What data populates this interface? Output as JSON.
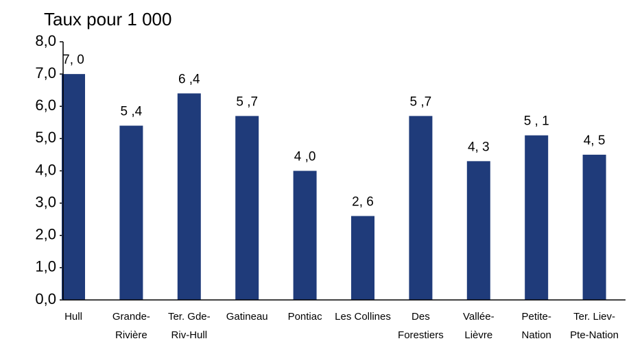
{
  "chart_data": {
    "type": "bar",
    "title": "Taux pour 1 000",
    "categories": [
      [
        "Hull"
      ],
      [
        "Grande-",
        "Rivière"
      ],
      [
        "Ter. Gde-",
        "Riv-Hull"
      ],
      [
        "Gatineau"
      ],
      [
        "Pontiac"
      ],
      [
        "Les Collines"
      ],
      [
        "Des",
        "Forestiers"
      ],
      [
        "Vallée-",
        "Lièvre"
      ],
      [
        "Petite-",
        "Nation"
      ],
      [
        "Ter. Liev-",
        "Pte-Nation"
      ]
    ],
    "values": [
      7.0,
      5.4,
      6.4,
      5.7,
      4.0,
      2.6,
      5.7,
      4.3,
      5.1,
      4.5
    ],
    "value_labels": [
      "7, 0",
      "5 ,4",
      "6 ,4",
      "5 ,7",
      "4 ,0",
      "2, 6",
      "5 ,7",
      "4, 3",
      "5 , 1",
      "4, 5"
    ],
    "color": "#1f3b7a",
    "ylim": [
      0,
      8
    ],
    "yticks": [
      {
        "value": 0,
        "label": "0,0"
      },
      {
        "value": 1,
        "label": "1,0"
      },
      {
        "value": 2,
        "label": "2,0"
      },
      {
        "value": 3,
        "label": "3,0"
      },
      {
        "value": 4,
        "label": "4,0"
      },
      {
        "value": 5,
        "label": "5,0"
      },
      {
        "value": 6,
        "label": "6,0"
      },
      {
        "value": 7,
        "label": "7,0"
      },
      {
        "value": 8,
        "label": "8,0"
      }
    ],
    "grid": false
  }
}
